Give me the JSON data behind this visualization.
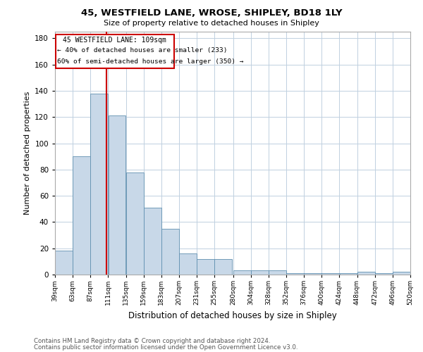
{
  "title": "45, WESTFIELD LANE, WROSE, SHIPLEY, BD18 1LY",
  "subtitle": "Size of property relative to detached houses in Shipley",
  "xlabel": "Distribution of detached houses by size in Shipley",
  "ylabel": "Number of detached properties",
  "footnote1": "Contains HM Land Registry data © Crown copyright and database right 2024.",
  "footnote2": "Contains public sector information licensed under the Open Government Licence v3.0.",
  "bin_edges": [
    39,
    63,
    87,
    111,
    135,
    159,
    183,
    207,
    231,
    255,
    280,
    304,
    328,
    352,
    376,
    400,
    424,
    448,
    472,
    496,
    520
  ],
  "bar_heights": [
    18,
    90,
    138,
    121,
    78,
    51,
    35,
    16,
    12,
    12,
    3,
    3,
    3,
    1,
    1,
    1,
    1,
    2,
    1,
    2
  ],
  "bar_color": "#c8d8e8",
  "bar_edge_color": "#6090b0",
  "property_size": 109,
  "vline_color": "#cc0000",
  "annotation_text1": "45 WESTFIELD LANE: 109sqm",
  "annotation_text2": "← 40% of detached houses are smaller (233)",
  "annotation_text3": "60% of semi-detached houses are larger (350) →",
  "annotation_box_color": "#cc0000",
  "ylim": [
    0,
    185
  ],
  "yticks": [
    0,
    20,
    40,
    60,
    80,
    100,
    120,
    140,
    160,
    180
  ],
  "background_color": "#ffffff",
  "grid_color": "#c0d0e0"
}
